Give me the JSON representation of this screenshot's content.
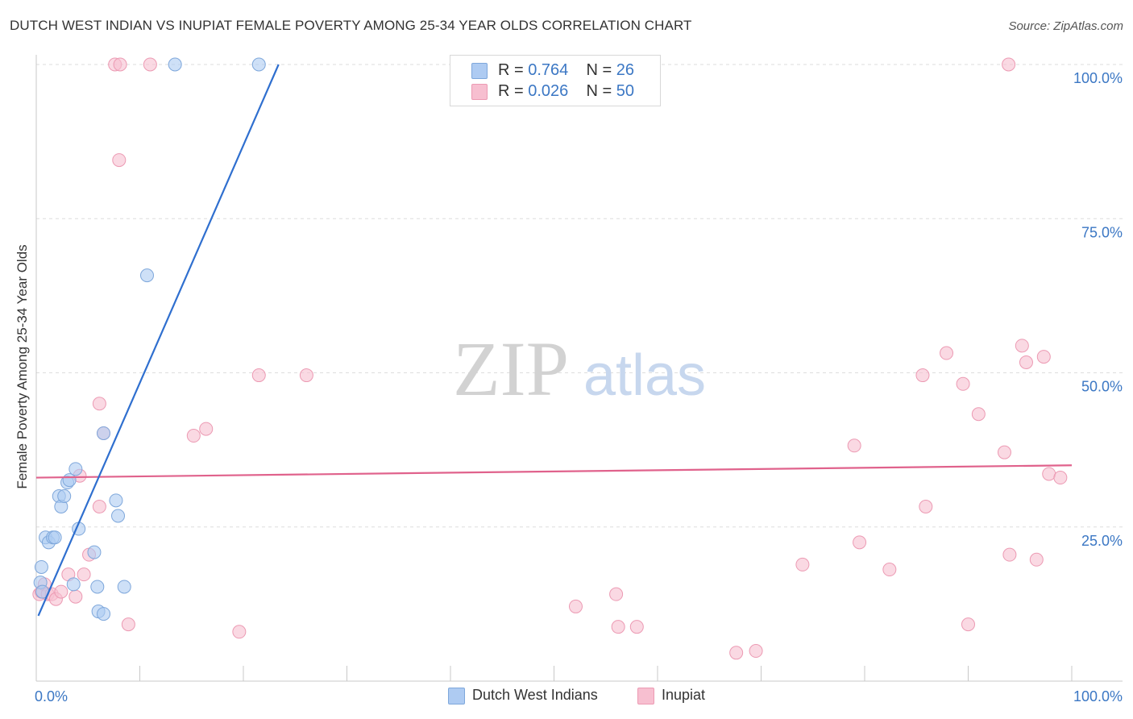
{
  "title": "DUTCH WEST INDIAN VS INUPIAT FEMALE POVERTY AMONG 25-34 YEAR OLDS CORRELATION CHART",
  "source": "Source: ZipAtlas.com",
  "watermark": {
    "zip": "ZIP",
    "atlas": "atlas"
  },
  "legend": {
    "rows": [
      {
        "r_label": "R = ",
        "r_value": "0.764",
        "n_label": "N = ",
        "n_value": "26"
      },
      {
        "r_label": "R = ",
        "r_value": "0.026",
        "n_label": "N = ",
        "n_value": "50"
      }
    ]
  },
  "bottom_legend": [
    "Dutch West Indians",
    "Inupiat"
  ],
  "colors": {
    "blue_fill": "#aecbf2",
    "blue_stroke": "#7ea7db",
    "blue_line": "#2f6fcf",
    "pink_fill": "#f7bfd0",
    "pink_stroke": "#ec9ab3",
    "pink_line": "#e0628c",
    "axis_text": "#3b77c4",
    "grid": "#dddddd"
  },
  "chart_data": {
    "type": "scatter",
    "title": "DUTCH WEST INDIAN VS INUPIAT FEMALE POVERTY AMONG 25-34 YEAR OLDS CORRELATION CHART",
    "xlabel": "",
    "ylabel": "Female Poverty Among 25-34 Year Olds",
    "xlim": [
      0,
      100
    ],
    "ylim": [
      0,
      100
    ],
    "x_tick_labels": [
      "0.0%",
      "100.0%"
    ],
    "y_tick_labels": [
      "25.0%",
      "50.0%",
      "75.0%",
      "100.0%"
    ],
    "y_ticks": [
      25,
      50,
      75,
      100
    ],
    "grid": true,
    "series": [
      {
        "name": "Dutch West Indians",
        "R": 0.764,
        "N": 26,
        "trend": {
          "x": [
            0.2,
            23.4
          ],
          "y": [
            10.6,
            100
          ]
        },
        "points": [
          [
            0.4,
            16.0
          ],
          [
            0.5,
            18.5
          ],
          [
            0.6,
            14.5
          ],
          [
            0.9,
            23.3
          ],
          [
            1.2,
            22.5
          ],
          [
            1.6,
            23.3
          ],
          [
            1.8,
            23.3
          ],
          [
            2.2,
            30.0
          ],
          [
            2.4,
            28.3
          ],
          [
            2.7,
            30.0
          ],
          [
            3.0,
            32.2
          ],
          [
            3.2,
            32.6
          ],
          [
            3.8,
            34.4
          ],
          [
            3.6,
            15.7
          ],
          [
            4.1,
            24.7
          ],
          [
            5.6,
            20.9
          ],
          [
            5.9,
            15.3
          ],
          [
            6.0,
            11.3
          ],
          [
            6.5,
            10.9
          ],
          [
            6.5,
            40.2
          ],
          [
            7.7,
            29.3
          ],
          [
            7.9,
            26.8
          ],
          [
            8.5,
            15.3
          ],
          [
            10.7,
            65.8
          ],
          [
            13.4,
            100
          ],
          [
            21.5,
            100
          ]
        ]
      },
      {
        "name": "Inupiat",
        "R": 0.026,
        "N": 50,
        "trend": {
          "x": [
            0,
            100
          ],
          "y": [
            33.0,
            35.0
          ]
        },
        "points": [
          [
            0.3,
            14.1
          ],
          [
            0.5,
            14.5
          ],
          [
            0.8,
            15.7
          ],
          [
            1.1,
            14.1
          ],
          [
            1.5,
            14.1
          ],
          [
            1.9,
            13.3
          ],
          [
            2.4,
            14.5
          ],
          [
            3.1,
            17.3
          ],
          [
            3.8,
            13.7
          ],
          [
            4.2,
            33.3
          ],
          [
            4.6,
            17.3
          ],
          [
            5.1,
            20.5
          ],
          [
            6.1,
            28.3
          ],
          [
            6.5,
            40.2
          ],
          [
            6.1,
            45.0
          ],
          [
            7.6,
            100
          ],
          [
            8.1,
            100
          ],
          [
            8.0,
            84.5
          ],
          [
            8.9,
            9.2
          ],
          [
            11.0,
            100
          ],
          [
            15.2,
            39.8
          ],
          [
            16.4,
            40.9
          ],
          [
            19.6,
            8.0
          ],
          [
            21.5,
            49.6
          ],
          [
            26.1,
            49.6
          ],
          [
            52.1,
            12.1
          ],
          [
            56.0,
            14.1
          ],
          [
            56.2,
            8.8
          ],
          [
            58.0,
            8.8
          ],
          [
            67.6,
            4.6
          ],
          [
            69.5,
            4.9
          ],
          [
            74.0,
            18.9
          ],
          [
            79.0,
            38.2
          ],
          [
            79.5,
            22.5
          ],
          [
            82.4,
            18.1
          ],
          [
            85.6,
            49.6
          ],
          [
            85.9,
            28.3
          ],
          [
            87.9,
            53.2
          ],
          [
            89.5,
            48.2
          ],
          [
            90.0,
            9.2
          ],
          [
            91.0,
            43.3
          ],
          [
            93.5,
            37.1
          ],
          [
            93.9,
            100
          ],
          [
            94.0,
            20.5
          ],
          [
            95.2,
            54.4
          ],
          [
            95.6,
            51.7
          ],
          [
            96.6,
            19.7
          ],
          [
            97.3,
            52.6
          ],
          [
            97.8,
            33.6
          ],
          [
            98.9,
            33.0
          ]
        ]
      }
    ]
  }
}
